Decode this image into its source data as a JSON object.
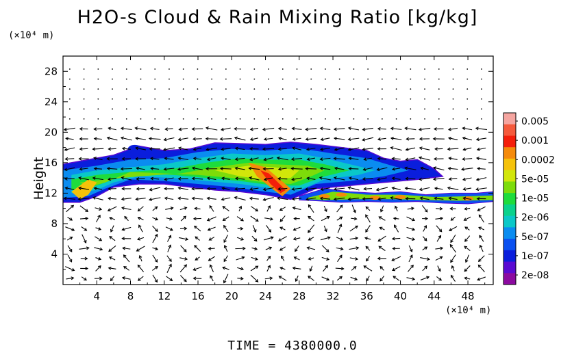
{
  "chart_data": {
    "type": "heatmap",
    "title": "H2O-s Cloud & Rain Mixing Ratio [kg/kg]",
    "ylabel": "Height",
    "x_unit": "(×10⁴ m)",
    "y_unit": "(×10⁴ m)",
    "xlim": [
      0,
      51
    ],
    "ylim": [
      0,
      30
    ],
    "x_ticks": [
      "4",
      "8",
      "12",
      "16",
      "20",
      "24",
      "28",
      "32",
      "36",
      "40",
      "44",
      "48"
    ],
    "y_ticks": [
      "4",
      "8",
      "12",
      "16",
      "20",
      "24",
      "28"
    ],
    "colorbar": {
      "labels": [
        "0.005",
        "0.001",
        "0.0002",
        "5e-05",
        "1e-05",
        "2e-06",
        "5e-07",
        "1e-07",
        "2e-08"
      ],
      "colors": [
        "#f5a5a0",
        "#f55a3c",
        "#f41e0a",
        "#f58a0a",
        "#f5c20a",
        "#d2e60a",
        "#7ddc0a",
        "#1edc3c",
        "#0ad28c",
        "#0ac8c8",
        "#0a8cf0",
        "#0a50f0",
        "#0a1edc",
        "#5a0ad2",
        "#8c0aa0"
      ]
    },
    "cloud_layer": {
      "upper_cloud": {
        "x_range": [
          0,
          48
        ],
        "height_range": [
          10.5,
          19
        ]
      },
      "thin_layer": {
        "x_range": [
          29,
          51
        ],
        "height_range": [
          10.5,
          12.5
        ]
      },
      "max_region": {
        "x": [
          22,
          27
        ],
        "height": [
          12,
          16
        ]
      }
    },
    "wind_vectors": "shown",
    "time_label": "TIME  =  4380000.0"
  }
}
